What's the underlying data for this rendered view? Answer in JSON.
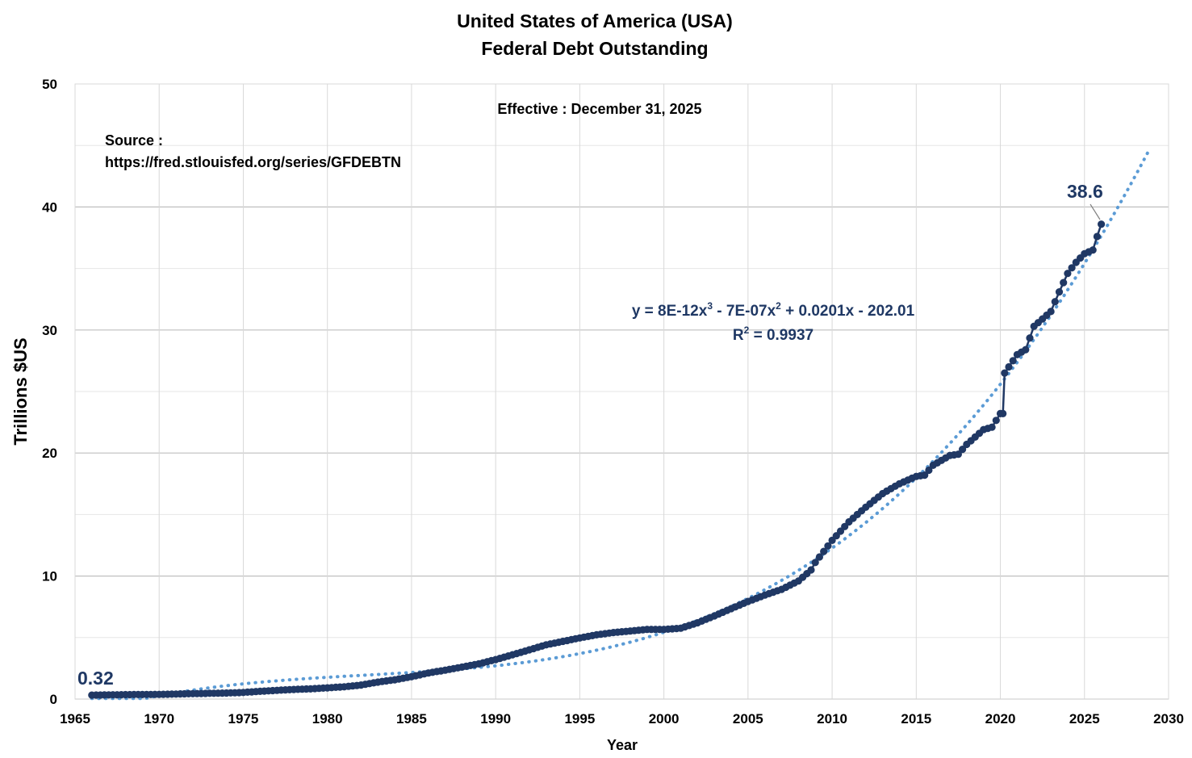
{
  "chart_data": {
    "type": "line",
    "title_line1": "United States of America (USA)",
    "title_line2": "Federal Debt Outstanding",
    "xlabel": "Year",
    "ylabel": "Trillions $US",
    "xlim": [
      1965,
      2030
    ],
    "ylim": [
      0,
      50
    ],
    "x_ticks": [
      "1965",
      "1970",
      "1975",
      "1980",
      "1985",
      "1990",
      "1995",
      "2000",
      "2005",
      "2010",
      "2015",
      "2020",
      "2025",
      "2030"
    ],
    "y_ticks": [
      "0",
      "10",
      "20",
      "30",
      "40",
      "50"
    ],
    "grid": true,
    "annotations": {
      "effective": "Effective : December 31, 2025",
      "source_label": "Source :",
      "source_url": "https://fred.stlouisfed.org/series/GFDEBTN",
      "first_label": "0.32",
      "last_label": "38.6"
    },
    "trendline": {
      "type": "polynomial",
      "order": 3,
      "equation_parts": [
        "y = 8E-12x",
        "3",
        " - 7E-07x",
        "2",
        " + 0.0201x - 202.01"
      ],
      "r2_parts": [
        "R",
        "2",
        " = 0.9937"
      ],
      "color": "#5b9bd5"
    },
    "series": [
      {
        "color": "#203864",
        "points": [
          [
            1966.0,
            0.32
          ],
          [
            1967.0,
            0.34
          ],
          [
            1968.0,
            0.36
          ],
          [
            1969.0,
            0.37
          ],
          [
            1970.0,
            0.38
          ],
          [
            1971.0,
            0.41
          ],
          [
            1972.0,
            0.44
          ],
          [
            1973.0,
            0.47
          ],
          [
            1974.0,
            0.49
          ],
          [
            1975.0,
            0.54
          ],
          [
            1976.0,
            0.63
          ],
          [
            1977.0,
            0.71
          ],
          [
            1978.0,
            0.78
          ],
          [
            1979.0,
            0.83
          ],
          [
            1980.0,
            0.91
          ],
          [
            1981.0,
            1.0
          ],
          [
            1982.0,
            1.14
          ],
          [
            1983.0,
            1.38
          ],
          [
            1984.0,
            1.57
          ],
          [
            1985.0,
            1.82
          ],
          [
            1986.0,
            2.12
          ],
          [
            1987.0,
            2.35
          ],
          [
            1988.0,
            2.6
          ],
          [
            1989.0,
            2.86
          ],
          [
            1990.0,
            3.21
          ],
          [
            1991.0,
            3.6
          ],
          [
            1992.0,
            4.0
          ],
          [
            1993.0,
            4.41
          ],
          [
            1994.0,
            4.69
          ],
          [
            1995.0,
            4.97
          ],
          [
            1996.0,
            5.22
          ],
          [
            1997.0,
            5.41
          ],
          [
            1998.0,
            5.53
          ],
          [
            1999.0,
            5.66
          ],
          [
            2000.0,
            5.66
          ],
          [
            2001.0,
            5.76
          ],
          [
            2002.0,
            6.2
          ],
          [
            2003.0,
            6.76
          ],
          [
            2004.0,
            7.35
          ],
          [
            2005.0,
            7.93
          ],
          [
            2006.0,
            8.45
          ],
          [
            2007.0,
            8.92
          ],
          [
            2008.0,
            9.6
          ],
          [
            2008.75,
            10.5
          ],
          [
            2009.0,
            11.1
          ],
          [
            2010.0,
            12.9
          ],
          [
            2011.0,
            14.4
          ],
          [
            2012.0,
            15.6
          ],
          [
            2013.0,
            16.7
          ],
          [
            2014.0,
            17.5
          ],
          [
            2015.0,
            18.1
          ],
          [
            2015.5,
            18.2
          ],
          [
            2016.0,
            19.0
          ],
          [
            2017.0,
            19.8
          ],
          [
            2017.5,
            19.9
          ],
          [
            2018.0,
            20.7
          ],
          [
            2019.0,
            21.9
          ],
          [
            2019.5,
            22.1
          ],
          [
            2020.0,
            23.2
          ],
          [
            2020.15,
            23.2
          ],
          [
            2020.25,
            26.5
          ],
          [
            2021.0,
            28.0
          ],
          [
            2021.5,
            28.4
          ],
          [
            2022.0,
            30.3
          ],
          [
            2022.5,
            30.9
          ],
          [
            2023.0,
            31.5
          ],
          [
            2023.5,
            33.1
          ],
          [
            2024.0,
            34.6
          ],
          [
            2024.5,
            35.5
          ],
          [
            2025.0,
            36.2
          ],
          [
            2025.5,
            36.5
          ],
          [
            2025.75,
            37.6
          ],
          [
            2026.0,
            38.6
          ]
        ]
      }
    ]
  }
}
